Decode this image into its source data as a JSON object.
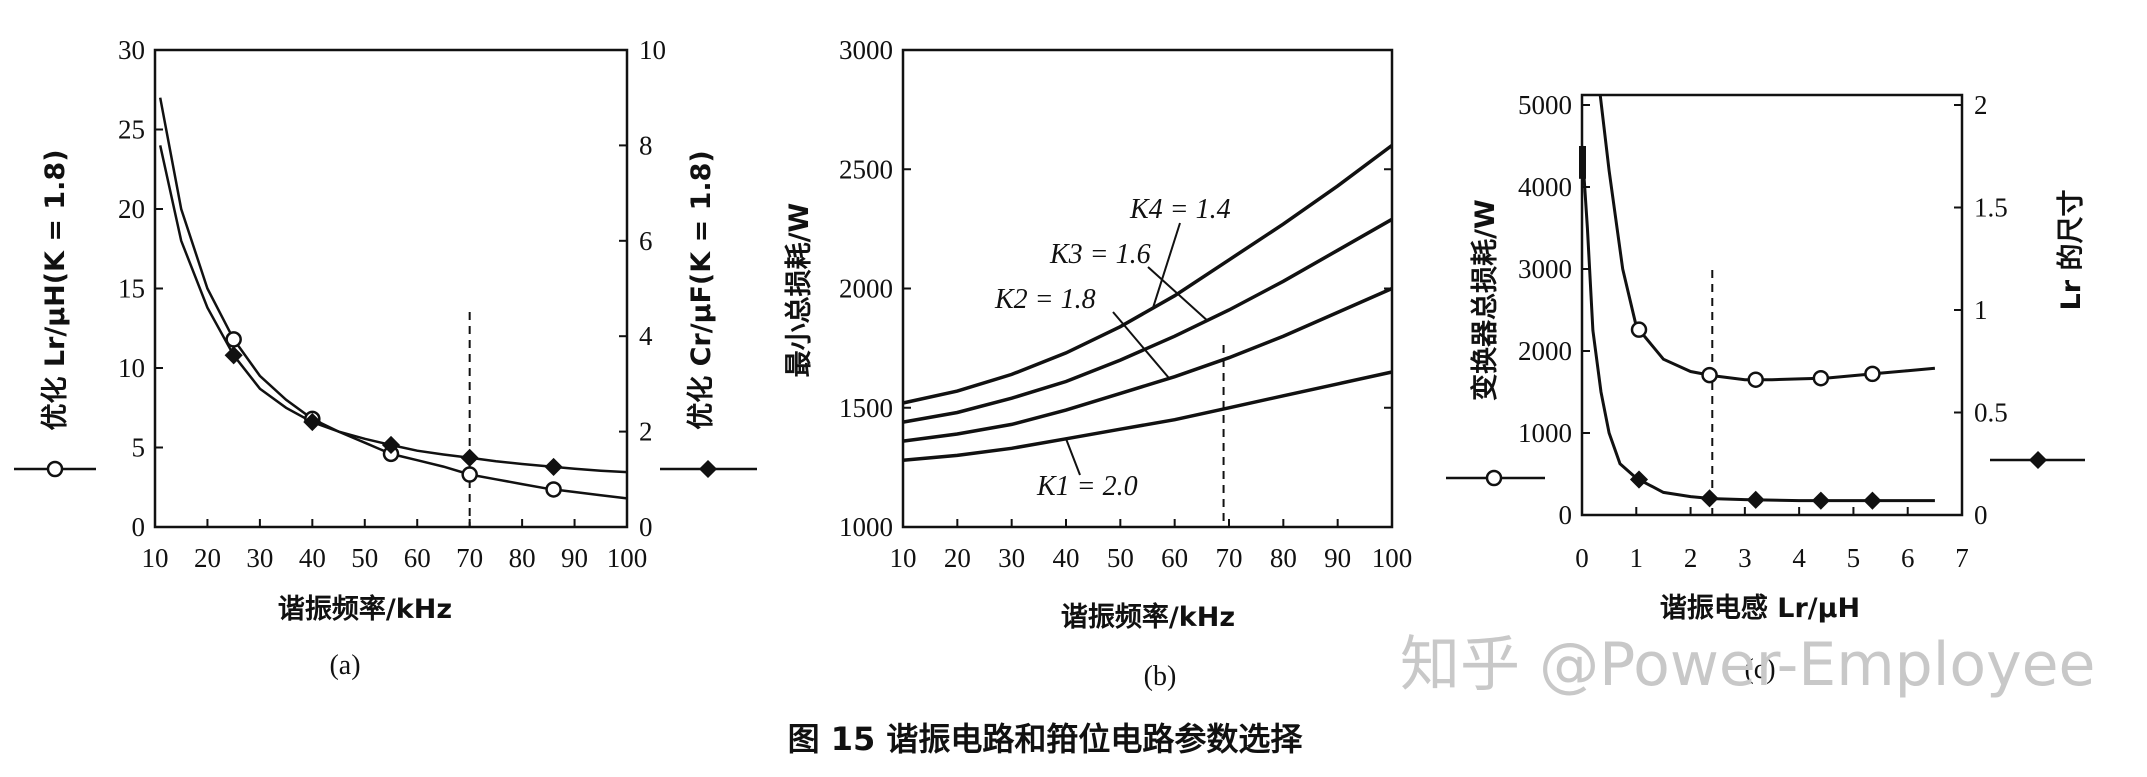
{
  "figure_caption": "图 15    谐振电路和箝位电路参数选择",
  "watermark": "知乎 @Power-Employee",
  "chart_data": [
    {
      "panel_id": "(a)",
      "type": "line",
      "xlabel": "谐振频率/kHz",
      "ylabel_left": "优化 Lr/μH(K = 1.8)",
      "ylabel_right": "优化 Cr/μF(K = 1.8)",
      "xlim": [
        10,
        100
      ],
      "ylim_left": [
        0,
        30
      ],
      "ylim_right": [
        0,
        10
      ],
      "x_ticks": [
        10,
        20,
        30,
        40,
        50,
        60,
        70,
        80,
        90,
        100
      ],
      "y_ticks_left": [
        0,
        5,
        10,
        15,
        20,
        25,
        30
      ],
      "y_ticks_right": [
        0,
        2,
        4,
        6,
        8,
        10
      ],
      "series": [
        {
          "axis": "left",
          "marker": "open-circle",
          "x": [
            11,
            15,
            20,
            25,
            30,
            35,
            40,
            45,
            50,
            55,
            60,
            65,
            70,
            75,
            80,
            85,
            90,
            95,
            100
          ],
          "y": [
            27,
            20,
            15,
            11.8,
            9.5,
            8,
            6.8,
            6,
            5.3,
            4.6,
            4.2,
            3.8,
            3.3,
            3.0,
            2.7,
            2.4,
            2.2,
            2.0,
            1.8
          ],
          "marker_x": [
            25,
            40,
            55,
            70,
            86
          ]
        },
        {
          "axis": "right",
          "marker": "filled-diamond",
          "x": [
            11,
            15,
            20,
            25,
            30,
            35,
            40,
            45,
            50,
            55,
            60,
            65,
            70,
            75,
            80,
            85,
            90,
            95,
            100
          ],
          "y": [
            8.0,
            6.0,
            4.6,
            3.6,
            2.9,
            2.5,
            2.2,
            2.0,
            1.85,
            1.72,
            1.6,
            1.52,
            1.45,
            1.38,
            1.32,
            1.27,
            1.22,
            1.18,
            1.15
          ],
          "marker_x": [
            25,
            40,
            55,
            70,
            86
          ]
        }
      ],
      "vline_x": 70
    },
    {
      "panel_id": "(b)",
      "type": "line",
      "xlabel": "谐振频率/kHz",
      "ylabel": "最小总损耗/W",
      "xlim": [
        10,
        100
      ],
      "ylim": [
        1000,
        3000
      ],
      "x_ticks": [
        10,
        20,
        30,
        40,
        50,
        60,
        70,
        80,
        90,
        100
      ],
      "y_ticks": [
        1000,
        1500,
        2000,
        2500,
        3000
      ],
      "series": [
        {
          "name": "K4 = 1.4",
          "x": [
            10,
            20,
            30,
            40,
            50,
            60,
            70,
            80,
            90,
            100
          ],
          "y": [
            1520,
            1570,
            1640,
            1730,
            1840,
            1970,
            2120,
            2270,
            2430,
            2600
          ]
        },
        {
          "name": "K3 = 1.6",
          "x": [
            10,
            20,
            30,
            40,
            50,
            60,
            70,
            80,
            90,
            100
          ],
          "y": [
            1440,
            1480,
            1540,
            1610,
            1700,
            1800,
            1910,
            2030,
            2160,
            2290
          ]
        },
        {
          "name": "K2 = 1.8",
          "x": [
            10,
            20,
            30,
            40,
            50,
            60,
            70,
            80,
            90,
            100
          ],
          "y": [
            1360,
            1390,
            1430,
            1490,
            1560,
            1630,
            1710,
            1800,
            1900,
            2000
          ]
        },
        {
          "name": "K1 = 2.0",
          "x": [
            10,
            20,
            30,
            40,
            50,
            60,
            70,
            80,
            90,
            100
          ],
          "y": [
            1280,
            1300,
            1330,
            1370,
            1410,
            1450,
            1500,
            1550,
            1600,
            1650
          ]
        }
      ],
      "vline_x": 69
    },
    {
      "panel_id": "(c)",
      "type": "line",
      "xlabel": "谐振电感 Lr/μH",
      "ylabel_left": "变换器总损耗/W",
      "ylabel_right": "Lr 的尺寸",
      "xlim": [
        0,
        7
      ],
      "ylim_left": [
        0,
        5000
      ],
      "ylim_right": [
        0,
        2
      ],
      "x_ticks": [
        0,
        1,
        2,
        3,
        4,
        5,
        6,
        7
      ],
      "y_ticks_left": [
        0,
        1000,
        2000,
        3000,
        4000,
        5000
      ],
      "y_ticks_right": [
        "0",
        "0.5",
        "1",
        "1.5",
        "2"
      ],
      "series": [
        {
          "axis": "left",
          "marker": "open-circle",
          "x": [
            0.25,
            0.5,
            0.75,
            1.0,
            1.5,
            2.0,
            2.4,
            3.0,
            3.5,
            4.0,
            4.5,
            5.0,
            5.5,
            6.0,
            6.5
          ],
          "y": [
            5600,
            4200,
            3000,
            2300,
            1900,
            1750,
            1700,
            1650,
            1650,
            1660,
            1670,
            1700,
            1730,
            1760,
            1790
          ],
          "marker_x": [
            1.05,
            2.35,
            3.2,
            4.4,
            5.35
          ]
        },
        {
          "axis": "right",
          "marker": "filled-diamond",
          "x": [
            0.0,
            0.1,
            0.2,
            0.35,
            0.5,
            0.7,
            1.0,
            1.5,
            2.0,
            2.4,
            3.0,
            4.0,
            5.0,
            6.0,
            6.5
          ],
          "y": [
            1.8,
            1.4,
            0.9,
            0.6,
            0.4,
            0.25,
            0.18,
            0.11,
            0.09,
            0.08,
            0.075,
            0.07,
            0.07,
            0.07,
            0.07
          ],
          "marker_x": [
            1.05,
            2.35,
            3.2,
            4.4,
            5.35
          ]
        }
      ],
      "vline_x": 2.4
    }
  ]
}
